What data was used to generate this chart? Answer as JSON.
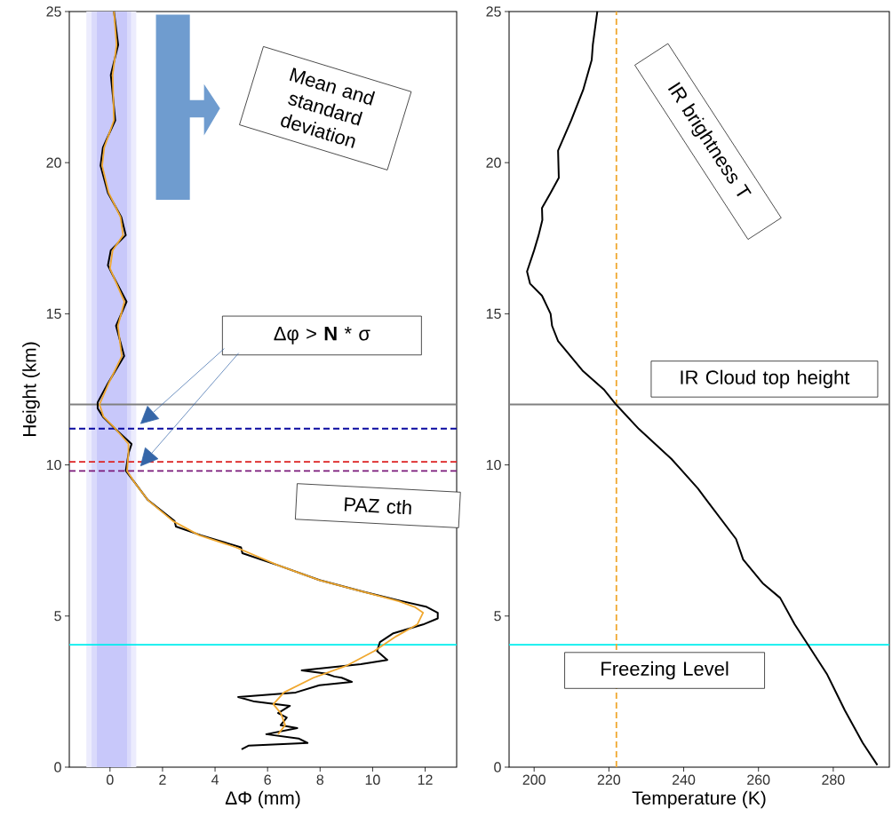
{
  "chart_data": [
    {
      "type": "line",
      "xlabel": "ΔΦ (mm)",
      "ylabel": "Height (km)",
      "xlim": [
        -1.55,
        13.2
      ],
      "ylim": [
        0,
        25
      ],
      "xticks": [
        0,
        2,
        4,
        6,
        8,
        10,
        12
      ],
      "yticks": [
        0,
        5,
        10,
        15,
        20,
        25
      ],
      "series": [
        {
          "color": "#000000",
          "x": [
            0.15,
            0.31,
            0.03,
            0.2,
            -0.27,
            -0.36,
            -0.08,
            0.43,
            0.6,
            0.03,
            -0.08,
            0.09,
            0.63,
            0.23,
            0.54,
            -0.08,
            -0.47,
            -0.47,
            -0.25,
            0.2,
            0.82,
            0.71,
            0.6,
            0.94,
            1.44,
            2.46,
            2.51,
            3.47,
            4.99,
            5.04,
            6.4,
            7.97,
            9.66,
            11.13,
            12.03,
            12.48,
            12.48,
            11.92,
            10.79,
            10.28,
            10.17,
            10.56,
            9.55,
            7.3,
            8.2,
            8.54,
            8.82,
            9.21,
            7.97,
            7.07,
            4.88,
            5.5,
            6.85,
            6.4,
            6.73,
            6.5,
            7.13,
            5.95,
            7.18,
            7.52,
            5.27,
            5.01
          ],
          "values": [
            25.0,
            23.9,
            22.9,
            21.4,
            20.5,
            19.9,
            19.0,
            18.2,
            17.6,
            17.1,
            16.6,
            16.3,
            15.4,
            14.6,
            13.6,
            12.7,
            12.07,
            11.87,
            11.57,
            11.19,
            10.69,
            10.4,
            9.81,
            9.42,
            8.84,
            8.14,
            7.96,
            7.67,
            7.27,
            7.08,
            6.68,
            6.19,
            5.8,
            5.49,
            5.31,
            5.11,
            4.92,
            4.72,
            4.43,
            4.14,
            3.84,
            3.55,
            3.41,
            3.2,
            3.1,
            3.0,
            2.96,
            2.82,
            2.71,
            2.47,
            2.32,
            2.17,
            2.03,
            1.79,
            1.64,
            1.39,
            1.29,
            1.09,
            0.95,
            0.8,
            0.71,
            0.59
          ]
        },
        {
          "color": "#f0a830",
          "x": [
            0.15,
            0.25,
            0.1,
            0.15,
            -0.22,
            -0.3,
            -0.05,
            0.4,
            0.5,
            0.1,
            0.0,
            0.55,
            0.3,
            0.45,
            -0.05,
            -0.4,
            -0.25,
            0.2,
            0.7,
            0.7,
            0.65,
            0.95,
            1.44,
            2.4,
            3.4,
            4.8,
            6.4,
            7.97,
            9.66,
            11.0,
            11.6,
            11.92,
            11.7,
            10.9,
            10.06,
            8.99,
            7.75,
            6.62,
            6.22,
            6.5,
            6.67,
            6.4
          ],
          "values": [
            25.0,
            23.9,
            22.9,
            21.4,
            20.5,
            19.9,
            19.0,
            18.2,
            17.6,
            17.1,
            16.5,
            15.4,
            14.6,
            13.6,
            12.7,
            12.0,
            11.6,
            11.2,
            10.7,
            10.4,
            9.8,
            9.4,
            8.84,
            8.14,
            7.67,
            7.27,
            6.68,
            6.19,
            5.8,
            5.49,
            5.3,
            5.11,
            4.72,
            4.33,
            3.84,
            3.35,
            2.96,
            2.47,
            2.08,
            1.79,
            1.39,
            1.09
          ]
        }
      ],
      "bands": [
        {
          "axis": "x",
          "from": -0.9,
          "to": 1.0,
          "color": "#ececfd"
        },
        {
          "axis": "x",
          "from": -0.7,
          "to": 0.8,
          "color": "#dadafb"
        },
        {
          "axis": "x",
          "from": -0.5,
          "to": 0.65,
          "color": "#c8c8fa"
        }
      ],
      "ref_lines": [
        {
          "axis": "y",
          "value": 12,
          "color": "#808080",
          "line_style": "solid"
        },
        {
          "axis": "y",
          "value": 11.2,
          "color": "#0a0aa0",
          "line_style": "dashed"
        },
        {
          "axis": "y",
          "value": 10.1,
          "color": "#dd2222",
          "line_style": "dashed"
        },
        {
          "axis": "y",
          "value": 9.8,
          "color": "#7a1a7a",
          "line_style": "dashed"
        },
        {
          "axis": "y",
          "value": 4.05,
          "color": "#00eeee",
          "line_style": "solid"
        }
      ],
      "annotations": [
        "Mean and standard deviation",
        "Δφ > **N** * σ",
        "PAZ cth"
      ]
    },
    {
      "type": "line",
      "xlabel": "Temperature (K)",
      "xlim": [
        193.3,
        295
      ],
      "ylim": [
        0,
        25
      ],
      "xticks": [
        200,
        220,
        240,
        260,
        280
      ],
      "yticks": [
        0,
        5,
        10,
        15,
        20,
        25
      ],
      "series": [
        {
          "color": "#000000",
          "x": [
            216.9,
            215.7,
            215.4,
            213.1,
            209.9,
            206.4,
            206.6,
            204.4,
            202.1,
            202.2,
            201.2,
            200.0,
            198.1,
            198.9,
            202.1,
            204.4,
            204.8,
            206.4,
            213.1,
            218.6,
            221.9,
            228.0,
            236.7,
            243.8,
            246.1,
            254.0,
            255.9,
            261.1,
            265.8,
            269.7,
            273.3,
            278.4,
            283.1,
            287.9,
            291.8
          ],
          "values": [
            25.0,
            23.9,
            23.4,
            22.4,
            21.4,
            20.4,
            19.5,
            19.0,
            18.5,
            18.1,
            17.6,
            17.1,
            16.4,
            16.0,
            15.6,
            15.0,
            14.6,
            14.1,
            13.1,
            12.5,
            12.0,
            11.19,
            10.2,
            9.22,
            8.84,
            7.55,
            6.87,
            6.09,
            5.6,
            4.72,
            4.04,
            3.06,
            1.88,
            0.8,
            0.07
          ]
        }
      ],
      "ref_lines": [
        {
          "axis": "y",
          "value": 12,
          "color": "#808080",
          "line_style": "solid",
          "label": "IR Cloud top height"
        },
        {
          "axis": "y",
          "value": 4.05,
          "color": "#00eeee",
          "line_style": "solid",
          "label": "Freezing Level"
        },
        {
          "axis": "x",
          "value": 222,
          "color": "#f0a830",
          "line_style": "dashed"
        }
      ],
      "annotations": [
        "IR brightness T"
      ]
    }
  ]
}
